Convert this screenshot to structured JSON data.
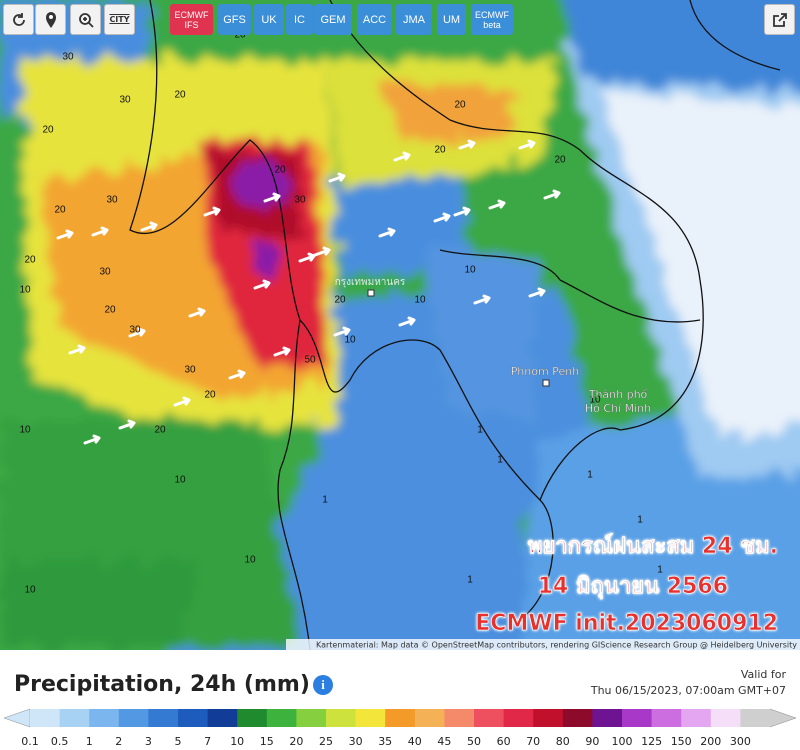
{
  "toolbar": {
    "city": "CITY",
    "models": [
      {
        "name": "ECMWF",
        "sub": "IFS"
      },
      {
        "name": "GFS"
      },
      {
        "name": "UK"
      },
      {
        "name": "IC"
      },
      {
        "name": "GEM"
      },
      {
        "name": "ACC"
      },
      {
        "name": "JMA"
      },
      {
        "name": "UM"
      },
      {
        "name": "ECMWF",
        "sub": "beta"
      }
    ],
    "active": 0
  },
  "map": {
    "places": [
      "กรุงเทพมหานคร",
      "Phnom Penh",
      "Thành phố",
      "Hồ Chí Minh"
    ],
    "contour_labels": [
      "30",
      "30",
      "20",
      "30",
      "20",
      "20",
      "20",
      "20",
      "30",
      "30",
      "20",
      "30",
      "20",
      "30",
      "20",
      "20",
      "10",
      "10",
      "10",
      "20",
      "50",
      "10",
      "10",
      "10",
      "1",
      "1",
      "1",
      "1",
      "1",
      "10",
      "1",
      "1",
      "20",
      "20",
      "20",
      "10",
      "1",
      "10"
    ],
    "attribution": "Kartenmaterial: Map data © OpenStreetMap contributors, rendering GIScience Research Group @ Heidelberg University"
  },
  "overlay": [
    "พยากรณ์ฝนสะสม 24 ชม.",
    "14 มิถุนายน 2566",
    "ECMWF init.2023060912"
  ],
  "footer": {
    "title": "Precipitation, 24h (mm)",
    "valid_label": "Valid for",
    "valid_time": "Thu 06/15/2023, 07:00am GMT+07"
  },
  "legend": {
    "values": [
      0.1,
      0.5,
      1,
      2,
      3,
      5,
      7,
      10,
      15,
      20,
      25,
      30,
      35,
      40,
      45,
      50,
      60,
      70,
      80,
      90,
      100,
      125,
      150,
      200,
      300
    ],
    "colors": [
      "#cfe6f8",
      "#a8d2f4",
      "#7cb6ee",
      "#5298e2",
      "#3479d2",
      "#1d5bbd",
      "#123d97",
      "#1f8a2e",
      "#3db23c",
      "#86cf3e",
      "#cde23c",
      "#f3e53a",
      "#f39a28",
      "#f5b156",
      "#f48a6a",
      "#ef5060",
      "#e22848",
      "#c0102c",
      "#8e0a2a",
      "#6e1492",
      "#a838c8",
      "#cc6ee0",
      "#e4a6f0",
      "#f4def8",
      "#cfcfcf"
    ]
  }
}
